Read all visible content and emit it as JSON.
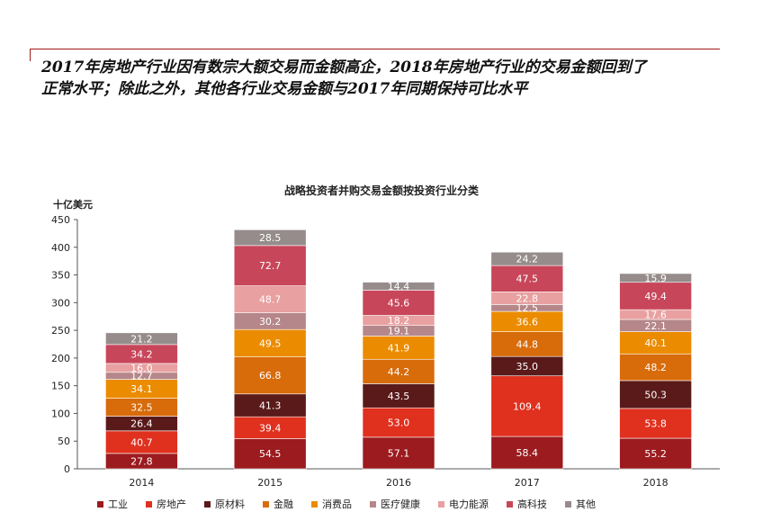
{
  "headline": {
    "line1": "2017年房地产行业因有数宗大额交易而金额高企，2018年房地产行业的交易金额回到了",
    "line2": "正常水平；除此之外，其他各行业交易金额与2017年同期保持可比水平"
  },
  "chart_data": {
    "type": "bar",
    "stacked": true,
    "title": "战略投资者并购交易金额按投资行业分类",
    "ylabel": "十亿美元",
    "xlabel": "",
    "ylim": [
      0,
      450
    ],
    "yticks": [
      0,
      50,
      100,
      150,
      200,
      250,
      300,
      350,
      400,
      450
    ],
    "grid": false,
    "legend_position": "bottom",
    "categories": [
      "2014",
      "2015",
      "2016",
      "2017",
      "2018"
    ],
    "series": [
      {
        "name": "工业",
        "color": "#9b1b1f",
        "values": [
          27.8,
          54.5,
          57.1,
          58.4,
          55.2
        ]
      },
      {
        "name": "房地产",
        "color": "#e0301e",
        "values": [
          40.7,
          39.4,
          53.0,
          109.4,
          53.8
        ]
      },
      {
        "name": "原材料",
        "color": "#5a1a1a",
        "values": [
          26.4,
          41.3,
          43.5,
          35.0,
          50.3
        ]
      },
      {
        "name": "金融",
        "color": "#d86b0a",
        "values": [
          32.5,
          66.8,
          44.2,
          44.8,
          48.2
        ]
      },
      {
        "name": "消费品",
        "color": "#eb8c00",
        "values": [
          34.1,
          49.5,
          41.9,
          36.6,
          40.1
        ]
      },
      {
        "name": "医疗健康",
        "color": "#b5878a",
        "values": [
          12.7,
          30.2,
          19.1,
          12.5,
          22.1
        ]
      },
      {
        "name": "电力能源",
        "color": "#e8a0a0",
        "values": [
          16.0,
          48.7,
          18.2,
          22.8,
          17.6
        ]
      },
      {
        "name": "高科技",
        "color": "#c8465a",
        "values": [
          34.2,
          72.7,
          45.6,
          47.5,
          49.4
        ]
      },
      {
        "name": "其他",
        "color": "#968c8c",
        "values": [
          21.2,
          28.5,
          14.4,
          24.2,
          15.9
        ]
      }
    ]
  }
}
